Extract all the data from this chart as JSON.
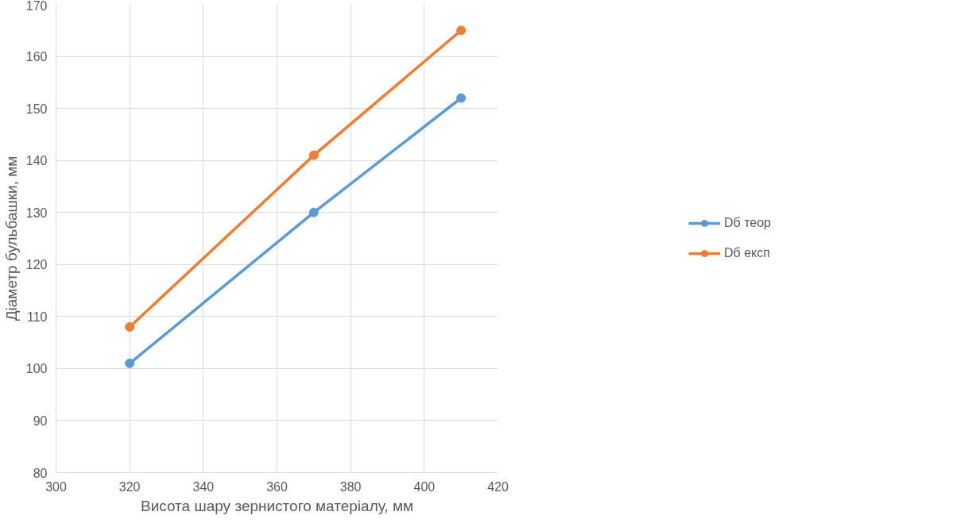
{
  "chart_data": {
    "type": "line",
    "xlabel": "Висота шару зернистого матеріалу, мм",
    "ylabel": "Діаметр бульбашки, мм",
    "x": [
      320,
      370,
      410
    ],
    "series": [
      {
        "name": "Dб теор",
        "color": "#5b9bd5",
        "values": [
          101,
          130,
          152
        ]
      },
      {
        "name": "Dб експ",
        "color": "#ed7d31",
        "values": [
          108,
          141,
          165
        ]
      }
    ],
    "xlim": [
      300,
      420
    ],
    "xticks": [
      300,
      320,
      340,
      360,
      380,
      400,
      420
    ],
    "ylim": [
      80,
      170
    ],
    "yticks": [
      80,
      90,
      100,
      110,
      120,
      130,
      140,
      150,
      160,
      170
    ],
    "grid": true,
    "legend": "right",
    "marker": "circle",
    "line_style": "solid"
  }
}
